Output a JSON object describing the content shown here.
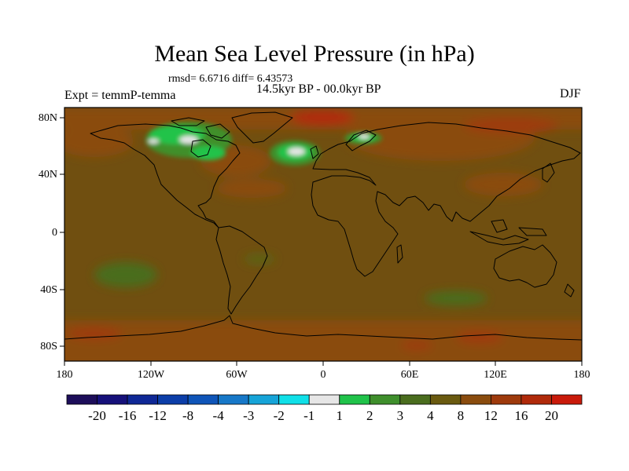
{
  "title": "Mean Sea Level Pressure (in hPa)",
  "stats": "rmsd= 6.6716 diff= 6.43573",
  "period": "14.5kyr BP - 00.0kyr BP",
  "experiment": "Expt = temmP-temma",
  "season": "DJF",
  "map": {
    "background_color": "#704f10",
    "latitude_labels": [
      "80N",
      "40N",
      "0",
      "40S",
      "80S"
    ],
    "longitude_labels": [
      "180",
      "120W",
      "60W",
      "0",
      "60E",
      "120E",
      "180"
    ]
  },
  "colorbar": {
    "labels": [
      "-20",
      "-16",
      "-12",
      "-8",
      "-4",
      "-3",
      "-2",
      "-1",
      "1",
      "2",
      "3",
      "4",
      "8",
      "12",
      "16",
      "20"
    ],
    "colors": [
      "#1d0e5a",
      "#16117a",
      "#0f2896",
      "#0c3ea8",
      "#0f55b8",
      "#1778c8",
      "#16a4d8",
      "#10e0e8",
      "#e6e6e6",
      "#20c34a",
      "#3f8f2c",
      "#4a6d1e",
      "#6a5a10",
      "#8a4c0e",
      "#9e3a0c",
      "#b02a0a",
      "#c91a0a"
    ]
  }
}
